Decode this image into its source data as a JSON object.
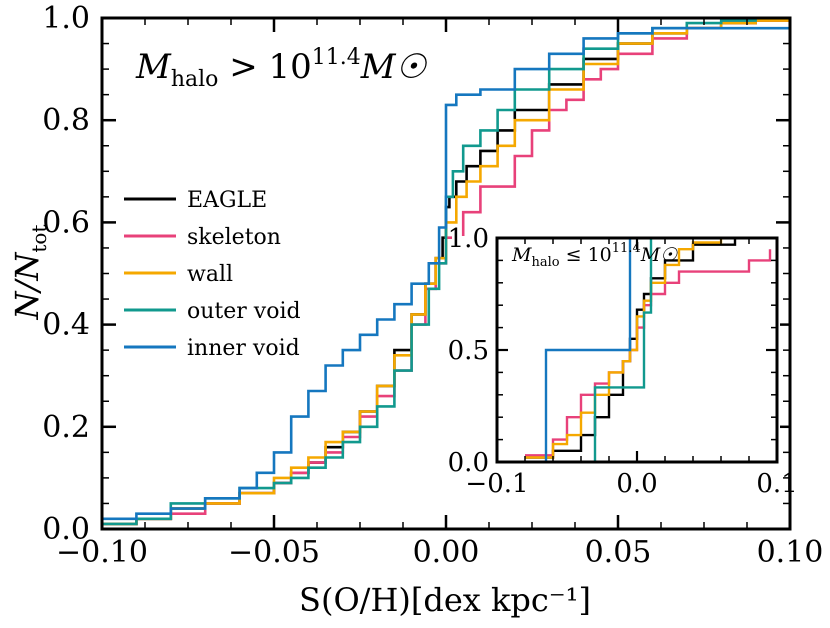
{
  "chart_data": [
    {
      "type": "line",
      "panel": "main",
      "xlabel": "S(O/H)[dex kpc⁻¹]",
      "ylabel": "N/N",
      "ylabel_sub": "tot",
      "annotation": "M",
      "annotation_sub": "halo",
      "annotation_rest": " > 10",
      "annotation_sup": "11.4",
      "annotation_tail": "M☉",
      "xlim": [
        -0.1,
        0.1
      ],
      "ylim": [
        0.0,
        1.0
      ],
      "xticks": [
        -0.1,
        -0.05,
        0.0,
        0.05,
        0.1
      ],
      "xtick_labels": [
        "−0.10",
        "−0.05",
        "0.00",
        "0.05",
        "0.10"
      ],
      "yticks": [
        0.0,
        0.2,
        0.4,
        0.6,
        0.8,
        1.0
      ],
      "ytick_labels": [
        "0.0",
        "0.2",
        "0.4",
        "0.6",
        "0.8",
        "1.0"
      ],
      "legend_position": "center-left",
      "series": [
        {
          "name": "EAGLE",
          "color": "#000000",
          "x": [
            -0.1,
            -0.09,
            -0.08,
            -0.07,
            -0.06,
            -0.05,
            -0.045,
            -0.04,
            -0.035,
            -0.03,
            -0.025,
            -0.02,
            -0.015,
            -0.01,
            -0.006,
            -0.003,
            -0.001,
            0.0,
            0.001,
            0.003,
            0.006,
            0.01,
            0.015,
            0.02,
            0.03,
            0.04,
            0.05,
            0.06,
            0.07,
            0.08,
            0.09,
            0.1
          ],
          "y": [
            0.01,
            0.02,
            0.04,
            0.05,
            0.07,
            0.09,
            0.11,
            0.13,
            0.16,
            0.19,
            0.23,
            0.28,
            0.35,
            0.42,
            0.48,
            0.53,
            0.57,
            0.63,
            0.65,
            0.68,
            0.71,
            0.74,
            0.78,
            0.82,
            0.87,
            0.92,
            0.95,
            0.97,
            0.98,
            0.99,
            0.995,
            1.0
          ]
        },
        {
          "name": "skeleton",
          "color": "#e8417a",
          "x": [
            -0.1,
            -0.09,
            -0.08,
            -0.07,
            -0.06,
            -0.05,
            -0.045,
            -0.04,
            -0.035,
            -0.03,
            -0.025,
            -0.02,
            -0.015,
            -0.01,
            -0.006,
            -0.003,
            0.0,
            0.005,
            0.01,
            0.02,
            0.025,
            0.03,
            0.035,
            0.04,
            0.045,
            0.05,
            0.06,
            0.07,
            0.08,
            0.09,
            0.1
          ],
          "y": [
            0.01,
            0.02,
            0.03,
            0.05,
            0.07,
            0.09,
            0.11,
            0.13,
            0.15,
            0.18,
            0.22,
            0.26,
            0.31,
            0.4,
            0.47,
            0.52,
            0.57,
            0.62,
            0.67,
            0.73,
            0.78,
            0.82,
            0.84,
            0.88,
            0.9,
            0.93,
            0.96,
            0.98,
            0.99,
            0.995,
            1.0
          ]
        },
        {
          "name": "wall",
          "color": "#f5a800",
          "x": [
            -0.1,
            -0.09,
            -0.08,
            -0.07,
            -0.06,
            -0.05,
            -0.045,
            -0.04,
            -0.035,
            -0.03,
            -0.025,
            -0.02,
            -0.015,
            -0.01,
            -0.006,
            -0.003,
            0.0,
            0.003,
            0.006,
            0.01,
            0.015,
            0.02,
            0.03,
            0.04,
            0.05,
            0.06,
            0.07,
            0.08,
            0.09,
            0.1
          ],
          "y": [
            0.01,
            0.02,
            0.04,
            0.05,
            0.07,
            0.1,
            0.12,
            0.14,
            0.17,
            0.19,
            0.23,
            0.28,
            0.34,
            0.42,
            0.48,
            0.53,
            0.6,
            0.65,
            0.68,
            0.71,
            0.75,
            0.8,
            0.86,
            0.91,
            0.95,
            0.97,
            0.98,
            0.99,
            0.995,
            1.0
          ]
        },
        {
          "name": "outer void",
          "color": "#11998e",
          "x": [
            -0.1,
            -0.09,
            -0.08,
            -0.07,
            -0.06,
            -0.05,
            -0.045,
            -0.04,
            -0.035,
            -0.03,
            -0.025,
            -0.02,
            -0.015,
            -0.01,
            -0.005,
            -0.002,
            0.0,
            0.002,
            0.005,
            0.01,
            0.015,
            0.02,
            0.03,
            0.04,
            0.05,
            0.06,
            0.07,
            0.08,
            0.09,
            0.1
          ],
          "y": [
            0.01,
            0.02,
            0.05,
            0.06,
            0.08,
            0.09,
            0.1,
            0.12,
            0.14,
            0.17,
            0.2,
            0.24,
            0.31,
            0.4,
            0.47,
            0.52,
            0.65,
            0.7,
            0.75,
            0.78,
            0.82,
            0.86,
            0.9,
            0.94,
            0.97,
            0.98,
            0.99,
            0.995,
            1.0,
            1.0
          ]
        },
        {
          "name": "inner void",
          "color": "#1577bf",
          "x": [
            -0.1,
            -0.09,
            -0.08,
            -0.07,
            -0.06,
            -0.055,
            -0.05,
            -0.045,
            -0.04,
            -0.035,
            -0.03,
            -0.025,
            -0.02,
            -0.015,
            -0.01,
            -0.005,
            -0.002,
            0.0,
            0.003,
            0.01,
            0.02,
            0.03,
            0.04,
            0.05,
            0.06,
            0.08,
            0.09,
            0.1
          ],
          "y": [
            0.02,
            0.03,
            0.04,
            0.06,
            0.08,
            0.11,
            0.15,
            0.22,
            0.27,
            0.32,
            0.35,
            0.38,
            0.41,
            0.44,
            0.48,
            0.52,
            0.59,
            0.83,
            0.85,
            0.86,
            0.9,
            0.93,
            0.96,
            0.97,
            0.98,
            0.98,
            0.98,
            0.98
          ]
        }
      ]
    },
    {
      "type": "line",
      "panel": "inset",
      "annotation": "M",
      "annotation_sub": "halo",
      "annotation_rest": " ≤ 10",
      "annotation_sup": "11.4",
      "annotation_tail": "M☉",
      "xlim": [
        -0.1,
        0.1
      ],
      "ylim": [
        0.0,
        1.0
      ],
      "xticks": [
        -0.1,
        0.0,
        0.1
      ],
      "xtick_labels": [
        "−0.1",
        "0.0",
        "0.1"
      ],
      "yticks": [
        0.0,
        0.5,
        1.0
      ],
      "ytick_labels": [
        "0.0",
        "0.5",
        "1.0"
      ],
      "series": [
        {
          "name": "EAGLE",
          "color": "#000000",
          "x": [
            -0.08,
            -0.06,
            -0.04,
            -0.03,
            -0.02,
            -0.01,
            -0.005,
            0.0,
            0.005,
            0.01,
            0.02,
            0.04,
            0.07
          ],
          "y": [
            0.02,
            0.05,
            0.12,
            0.2,
            0.3,
            0.45,
            0.55,
            0.68,
            0.75,
            0.82,
            0.9,
            0.97,
            1.0
          ]
        },
        {
          "name": "skeleton",
          "color": "#e8417a",
          "x": [
            -0.08,
            -0.06,
            -0.05,
            -0.04,
            -0.03,
            -0.02,
            -0.01,
            -0.005,
            0.0,
            0.005,
            0.01,
            0.02,
            0.03,
            0.05,
            0.08,
            0.095
          ],
          "y": [
            0.03,
            0.1,
            0.2,
            0.3,
            0.35,
            0.4,
            0.45,
            0.5,
            0.6,
            0.7,
            0.75,
            0.8,
            0.85,
            0.85,
            0.9,
            0.95
          ]
        },
        {
          "name": "wall",
          "color": "#f5a800",
          "x": [
            -0.08,
            -0.06,
            -0.05,
            -0.04,
            -0.03,
            -0.02,
            -0.01,
            -0.005,
            0.0,
            0.005,
            0.01,
            0.02,
            0.03,
            0.04,
            0.06
          ],
          "y": [
            0.02,
            0.08,
            0.12,
            0.22,
            0.3,
            0.4,
            0.45,
            0.5,
            0.65,
            0.72,
            0.8,
            0.88,
            0.95,
            0.98,
            1.0
          ]
        },
        {
          "name": "outer void",
          "color": "#11998e",
          "x": [
            -0.1,
            -0.03,
            0.0,
            0.005,
            0.01,
            0.06
          ],
          "y": [
            0.0,
            0.333,
            0.333,
            0.667,
            1.0,
            1.0
          ]
        },
        {
          "name": "inner void",
          "color": "#1577bf",
          "x": [
            -0.1,
            -0.065,
            -0.005,
            0.06
          ],
          "y": [
            0.0,
            0.5,
            1.0,
            1.0
          ]
        }
      ]
    }
  ]
}
